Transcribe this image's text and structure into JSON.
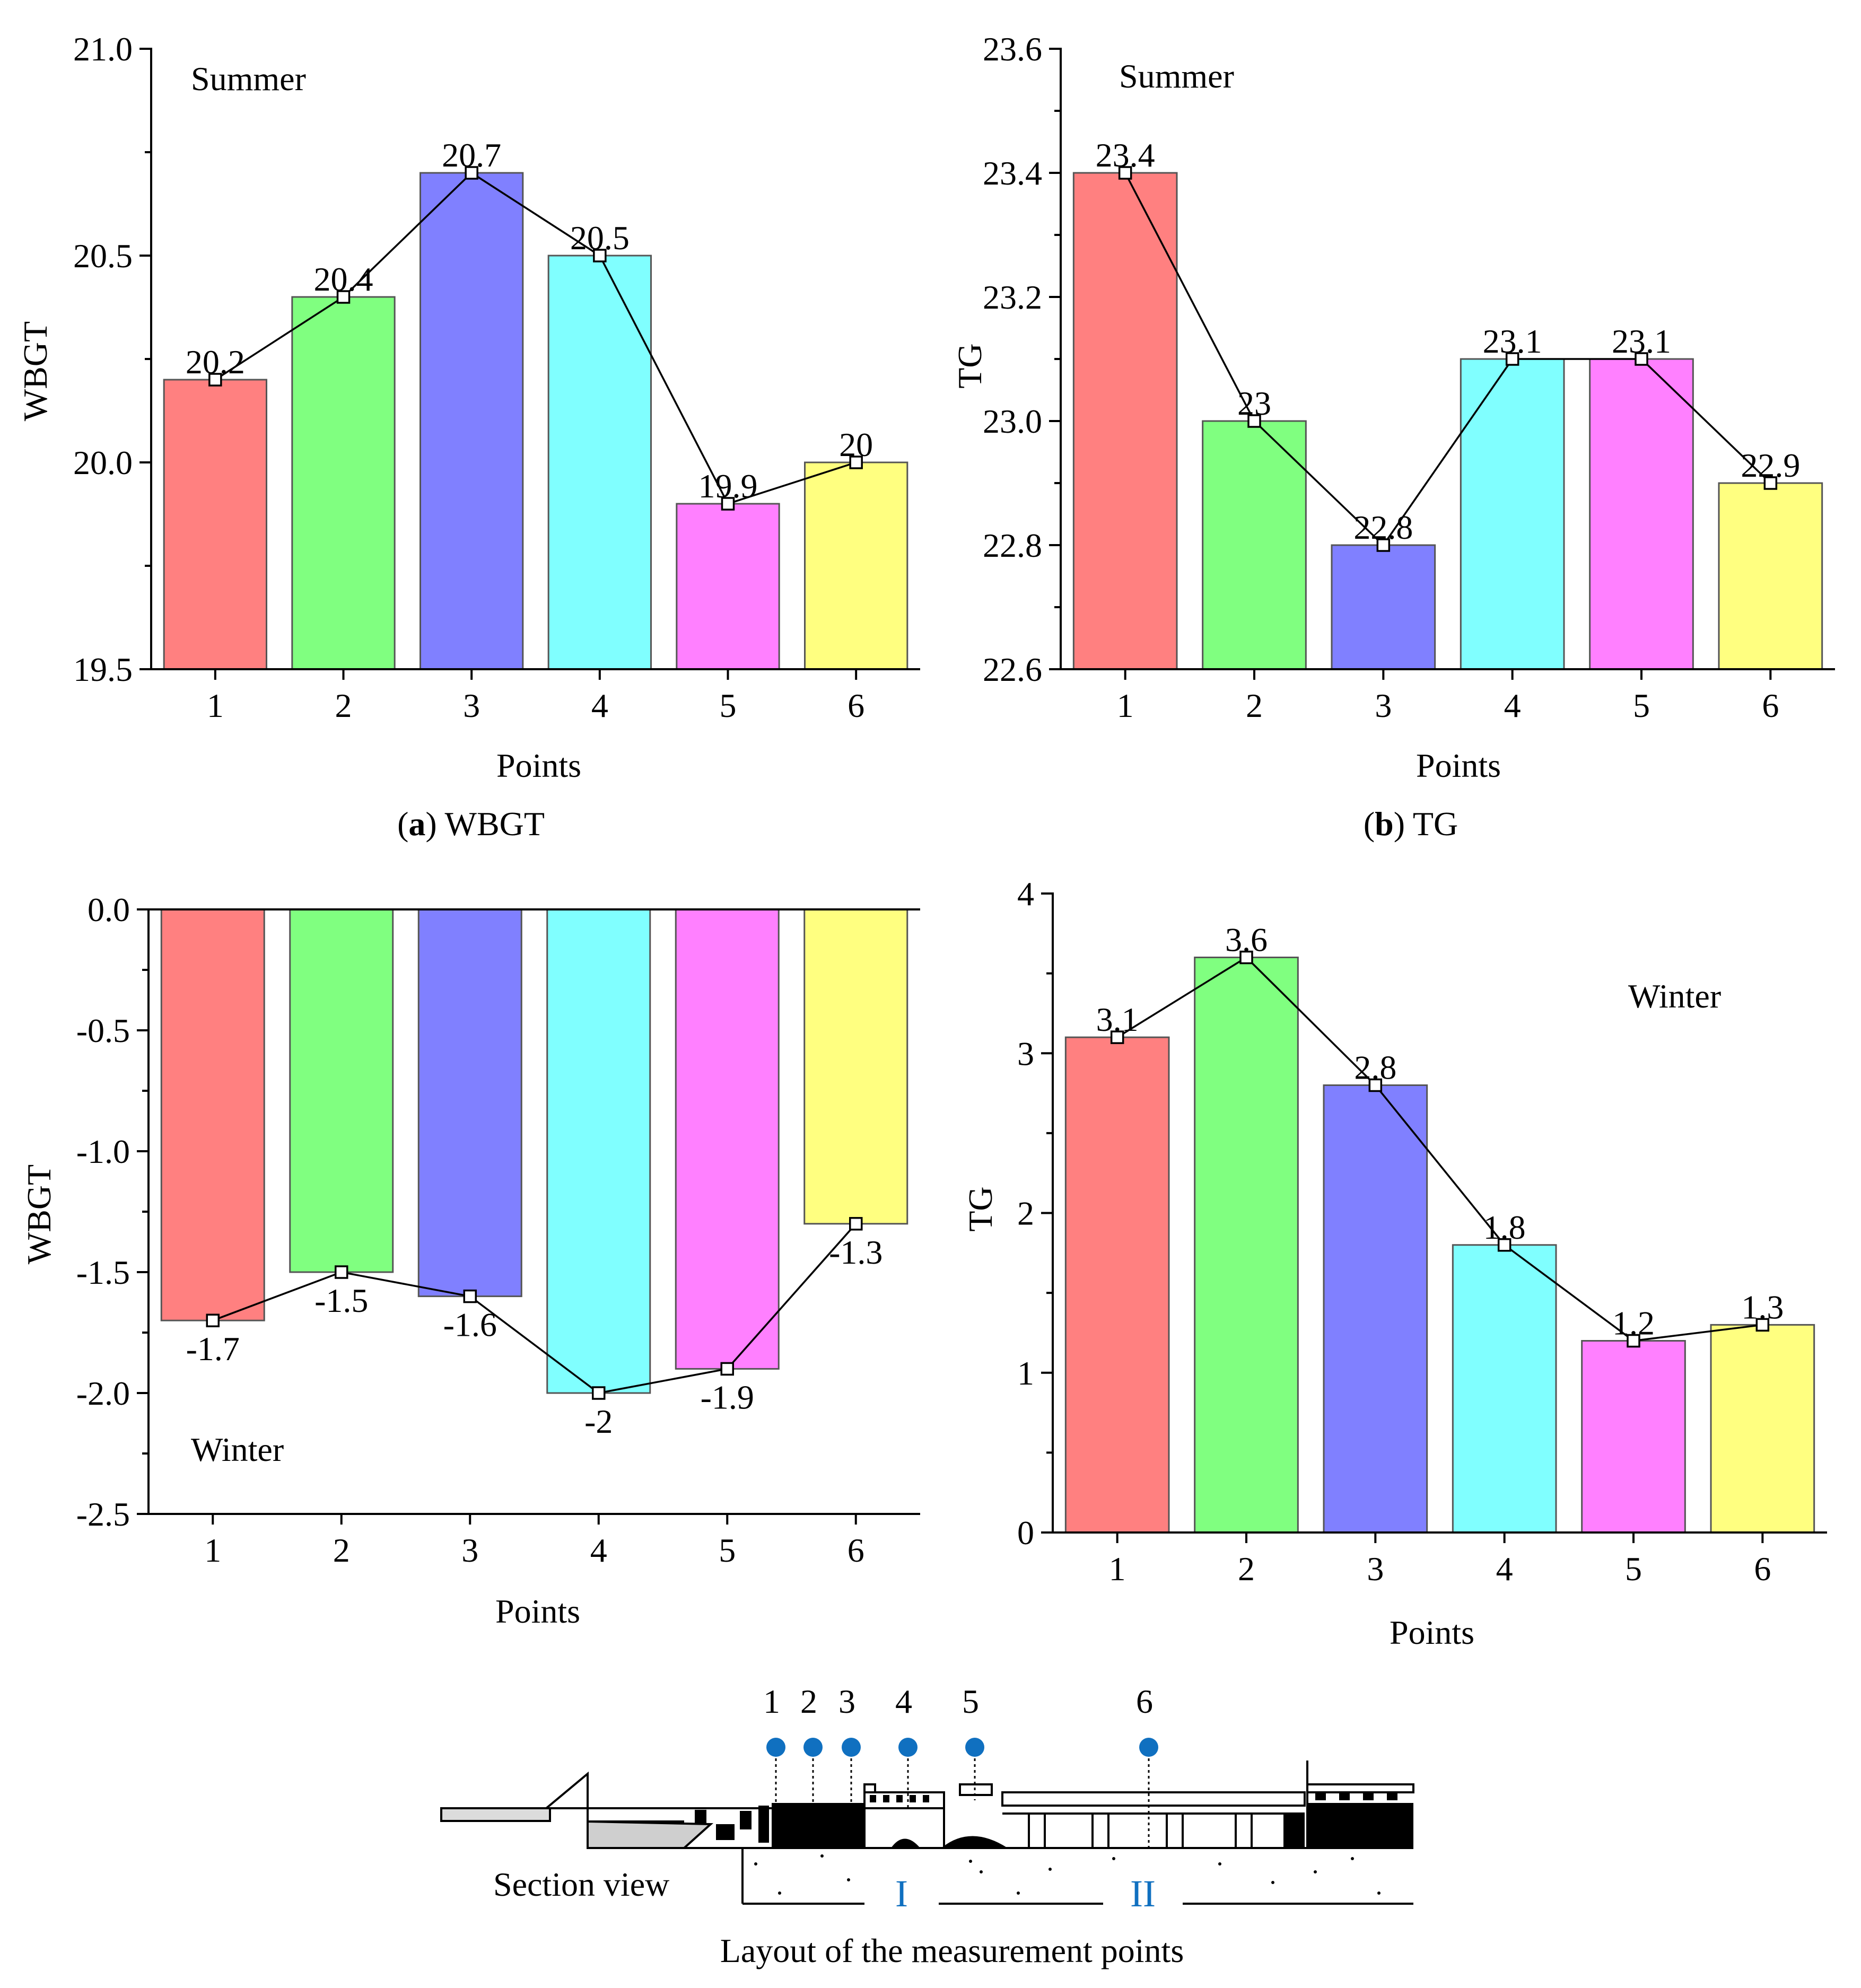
{
  "chart_data": [
    {
      "id": "a",
      "type": "bar",
      "season_label": "Summer",
      "ylabel": "WBGT",
      "xlabel": "Points",
      "caption_letter": "a",
      "caption_text": "WBGT",
      "categories": [
        "1",
        "2",
        "3",
        "4",
        "5",
        "6"
      ],
      "values": [
        20.2,
        20.4,
        20.7,
        20.5,
        19.9,
        20.0
      ],
      "value_labels": [
        "20.2",
        "20.4",
        "20.7",
        "20.5",
        "19.9",
        "20"
      ],
      "ylim": [
        19.5,
        21.0
      ],
      "yticks": [
        "19.5",
        "20.0",
        "20.5",
        "21.0"
      ],
      "ytick_values": [
        19.5,
        20.0,
        20.5,
        21.0
      ]
    },
    {
      "id": "b",
      "type": "bar",
      "season_label": "Summer",
      "ylabel": "TG",
      "xlabel": "Points",
      "caption_letter": "b",
      "caption_text": "TG",
      "categories": [
        "1",
        "2",
        "3",
        "4",
        "5",
        "6"
      ],
      "values": [
        23.4,
        23.0,
        22.8,
        23.1,
        23.1,
        22.9
      ],
      "value_labels": [
        "23.4",
        "23",
        "22.8",
        "23.1",
        "23.1",
        "22.9"
      ],
      "ylim": [
        22.6,
        23.6
      ],
      "yticks": [
        "22.6",
        "22.8",
        "23.0",
        "23.2",
        "23.4",
        "23.6"
      ],
      "ytick_values": [
        22.6,
        22.8,
        23.0,
        23.2,
        23.4,
        23.6
      ]
    },
    {
      "id": "c",
      "type": "bar",
      "season_label": "Winter",
      "ylabel": "WBGT",
      "xlabel": "Points",
      "categories": [
        "1",
        "2",
        "3",
        "4",
        "5",
        "6"
      ],
      "values": [
        -1.7,
        -1.5,
        -1.6,
        -2.0,
        -1.9,
        -1.3
      ],
      "value_labels": [
        "-1.7",
        "-1.5",
        "-1.6",
        "-2",
        "-1.9",
        "-1.3"
      ],
      "ylim": [
        -2.5,
        0.0
      ],
      "yticks": [
        "-2.5",
        "-2.0",
        "-1.5",
        "-1.0",
        "-0.5",
        "0.0"
      ],
      "ytick_values": [
        -2.5,
        -2.0,
        -1.5,
        -1.0,
        -0.5,
        0.0
      ]
    },
    {
      "id": "d",
      "type": "bar",
      "season_label": "Winter",
      "ylabel": "TG",
      "xlabel": "Points",
      "categories": [
        "1",
        "2",
        "3",
        "4",
        "5",
        "6"
      ],
      "values": [
        3.1,
        3.6,
        2.8,
        1.8,
        1.2,
        1.3
      ],
      "value_labels": [
        "3.1",
        "3.6",
        "2.8",
        "1.8",
        "1.2",
        "1.3"
      ],
      "ylim": [
        0,
        4
      ],
      "yticks": [
        "0",
        "1",
        "2",
        "3",
        "4"
      ],
      "ytick_values": [
        0,
        1,
        2,
        3,
        4
      ]
    }
  ],
  "bar_colors": [
    "#ff8080",
    "#80ff80",
    "#8080ff",
    "#80ffff",
    "#ff80ff",
    "#ffff80"
  ],
  "colors": {
    "marker_blue": "#1070c0",
    "ink": "#000000"
  },
  "section": {
    "point_labels": [
      "1",
      "2",
      "3",
      "4",
      "5",
      "6"
    ],
    "view_label": "Section view",
    "zone_labels": [
      "I",
      "II"
    ],
    "caption": "Layout of the measurement points"
  }
}
